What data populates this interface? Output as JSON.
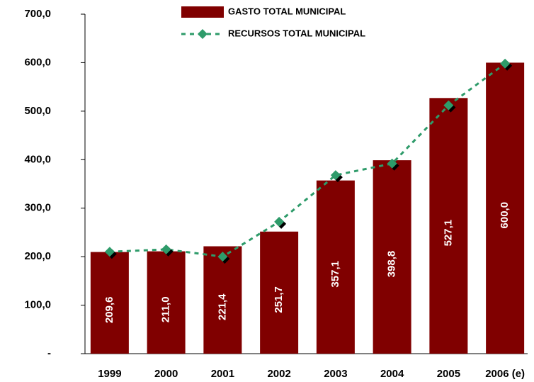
{
  "chart_data": {
    "type": "bar",
    "categories": [
      "1999",
      "2000",
      "2001",
      "2002",
      "2003",
      "2004",
      "2005",
      "2006 (e)"
    ],
    "series": [
      {
        "name": "GASTO TOTAL MUNICIPAL",
        "type": "bar",
        "color": "#800000",
        "values": [
          209.6,
          211.0,
          221.4,
          251.7,
          357.1,
          398.8,
          527.1,
          600.0
        ],
        "value_labels": [
          "209,6",
          "211,0",
          "221,4",
          "251,7",
          "357,1",
          "398,8",
          "527,1",
          "600,0"
        ]
      },
      {
        "name": "RECURSOS TOTAL MUNICIPAL",
        "type": "line",
        "color": "#2e9b6a",
        "values": [
          210,
          215,
          200,
          272,
          368,
          392,
          512,
          598
        ]
      }
    ],
    "ylim": [
      0,
      700
    ],
    "yticks": [
      {
        "value": 0,
        "label": "-"
      },
      {
        "value": 100,
        "label": "100,0"
      },
      {
        "value": 200,
        "label": "200,0"
      },
      {
        "value": 300,
        "label": "300,0"
      },
      {
        "value": 400,
        "label": "400,0"
      },
      {
        "value": 500,
        "label": "500,0"
      },
      {
        "value": 600,
        "label": "600,0"
      },
      {
        "value": 700,
        "label": "700,0"
      }
    ],
    "legend": "top"
  }
}
